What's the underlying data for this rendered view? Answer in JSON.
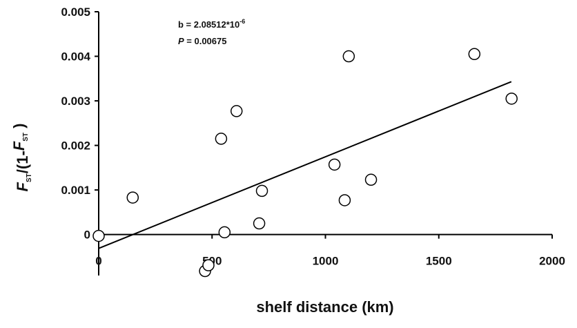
{
  "chart_data": {
    "type": "scatter",
    "x_label": "shelf distance (km)",
    "y_label": [
      "F",
      "ST",
      "/(1-",
      "F",
      "ST",
      " )"
    ],
    "annotations": [
      {
        "text": "b = 2.08512*10",
        "superscript": "-6"
      },
      {
        "italic": "P",
        "text": " = 0.00675"
      }
    ],
    "x": [
      0,
      150,
      540,
      608,
      555,
      720,
      708,
      469,
      484,
      1040,
      1103,
      1085,
      1201,
      1657,
      1821
    ],
    "values": [
      -3e-05,
      0.00083,
      0.00215,
      0.00277,
      5e-05,
      0.00098,
      0.00025,
      -0.00082,
      -0.00069,
      0.00157,
      0.004,
      0.00077,
      0.00123,
      0.00405,
      0.00305
    ],
    "fit": {
      "x": [
        0,
        1820
      ],
      "y": [
        -0.00031,
        0.00343
      ]
    },
    "xlim": [
      0,
      2000
    ],
    "ylim": [
      -0.00092,
      0.005
    ],
    "xticks": [
      0,
      500,
      1000,
      1500,
      2000
    ],
    "yticks": [
      0,
      0.001,
      0.002,
      0.003,
      0.004,
      0.005
    ],
    "marker_color": "#000000",
    "marker_fill": "#ffffff"
  }
}
